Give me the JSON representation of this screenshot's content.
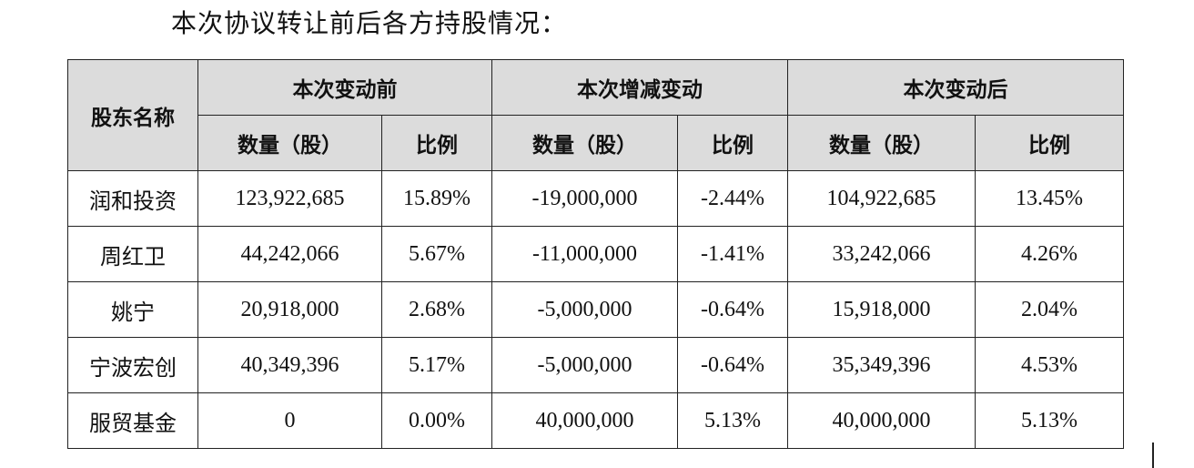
{
  "intro_text": "本次协议转让前后各方持股情况：",
  "table": {
    "header_name": "股东名称",
    "groups": [
      "本次变动前",
      "本次增减变动",
      "本次变动后"
    ],
    "sub_headers": [
      "数量（股）",
      "比例",
      "数量（股）",
      "比例",
      "数量（股）",
      "比例"
    ],
    "rows": [
      {
        "name": "润和投资",
        "values": [
          "123,922,685",
          "15.89%",
          "-19,000,000",
          "-2.44%",
          "104,922,685",
          "13.45%"
        ]
      },
      {
        "name": "周红卫",
        "values": [
          "44,242,066",
          "5.67%",
          "-11,000,000",
          "-1.41%",
          "33,242,066",
          "4.26%"
        ]
      },
      {
        "name": "姚宁",
        "values": [
          "20,918,000",
          "2.68%",
          "-5,000,000",
          "-0.64%",
          "15,918,000",
          "2.04%"
        ]
      },
      {
        "name": "宁波宏创",
        "values": [
          "40,349,396",
          "5.17%",
          "-5,000,000",
          "-0.64%",
          "35,349,396",
          "4.53%"
        ]
      },
      {
        "name": "服贸基金",
        "values": [
          "0",
          "0.00%",
          "40,000,000",
          "5.13%",
          "40,000,000",
          "5.13%"
        ]
      }
    ]
  }
}
